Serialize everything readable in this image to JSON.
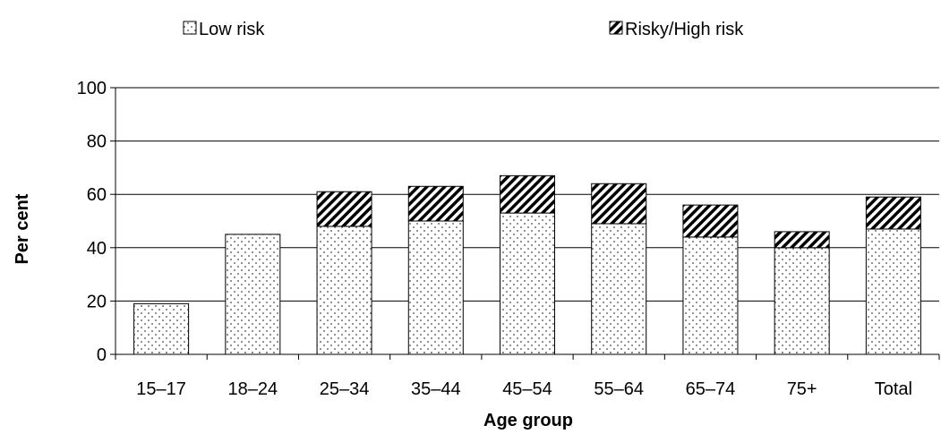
{
  "chart_data": {
    "type": "bar",
    "stacked": true,
    "categories": [
      "15–17",
      "18–24",
      "25–34",
      "35–44",
      "45–54",
      "55–64",
      "65–74",
      "75+",
      "Total"
    ],
    "series": [
      {
        "name": "Low risk",
        "values": [
          19,
          45,
          48,
          50,
          53,
          49,
          44,
          40,
          47
        ],
        "pattern": "dotted"
      },
      {
        "name": "Risky/High risk",
        "values": [
          0,
          0,
          13,
          13,
          14,
          15,
          12,
          6,
          12
        ],
        "pattern": "diagonal-hatch"
      }
    ],
    "title": "",
    "xlabel": "Age group",
    "ylabel": "Per cent",
    "ylim": [
      0,
      100
    ],
    "yticks": [
      0,
      20,
      40,
      60,
      80,
      100
    ],
    "grid": true,
    "legend_position": "top"
  }
}
